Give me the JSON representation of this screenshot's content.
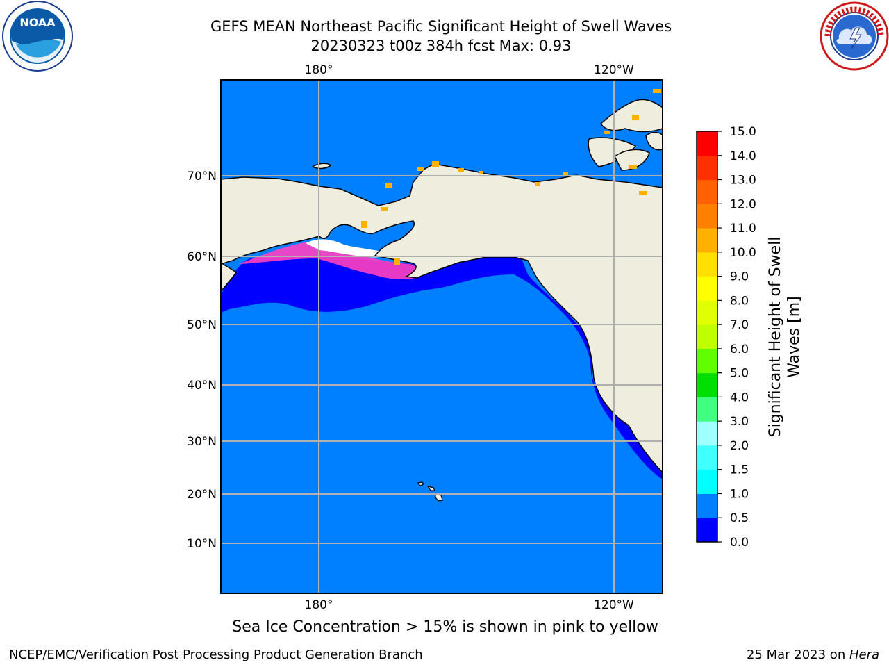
{
  "title": {
    "line1": "GEFS MEAN Northeast Pacific Significant Height of Swell Waves",
    "line2": "20230323 t00z 384h fcst   Max: 0.93"
  },
  "logos": {
    "left": {
      "icon": "noaa-logo",
      "text": "NOAA"
    },
    "right": {
      "icon": "nws-logo",
      "ring_text": "NATIONAL WEATHER SERVICE"
    }
  },
  "map": {
    "projection": "mercator",
    "lon_labels": [
      "180°",
      "120°W"
    ],
    "lat_labels": [
      "70°N",
      "60°N",
      "50°N",
      "40°N",
      "30°N",
      "20°N",
      "10°N"
    ],
    "ocean_color": "#0080ff",
    "low_color": "#0000ff",
    "land_color": "#efedde"
  },
  "colorbar": {
    "label_line1": "Significant Height of Swell",
    "label_line2": "Waves [m]",
    "ticks": [
      "0.0",
      "0.5",
      "1.0",
      "1.5",
      "2.0",
      "3.0",
      "4.0",
      "5.0",
      "6.0",
      "7.0",
      "8.0",
      "9.0",
      "10.0",
      "11.0",
      "12.0",
      "13.0",
      "14.0",
      "15.0"
    ],
    "colors": [
      "#0000ff",
      "#0080ff",
      "#00ffff",
      "#40ffff",
      "#a0ffff",
      "#40ff80",
      "#00e000",
      "#60ff00",
      "#c0ff00",
      "#e0ff00",
      "#ffff00",
      "#ffe000",
      "#ffb000",
      "#ff8000",
      "#ff6000",
      "#ff3000",
      "#ff0000"
    ]
  },
  "ice_note": "Sea Ice Concentration > 15% is shown in pink to yellow",
  "footer": {
    "left": "NCEP/EMC/Verification Post Processing Product Generation Branch",
    "right_prefix": "25 Mar 2023 on ",
    "right_host": "Hera"
  }
}
